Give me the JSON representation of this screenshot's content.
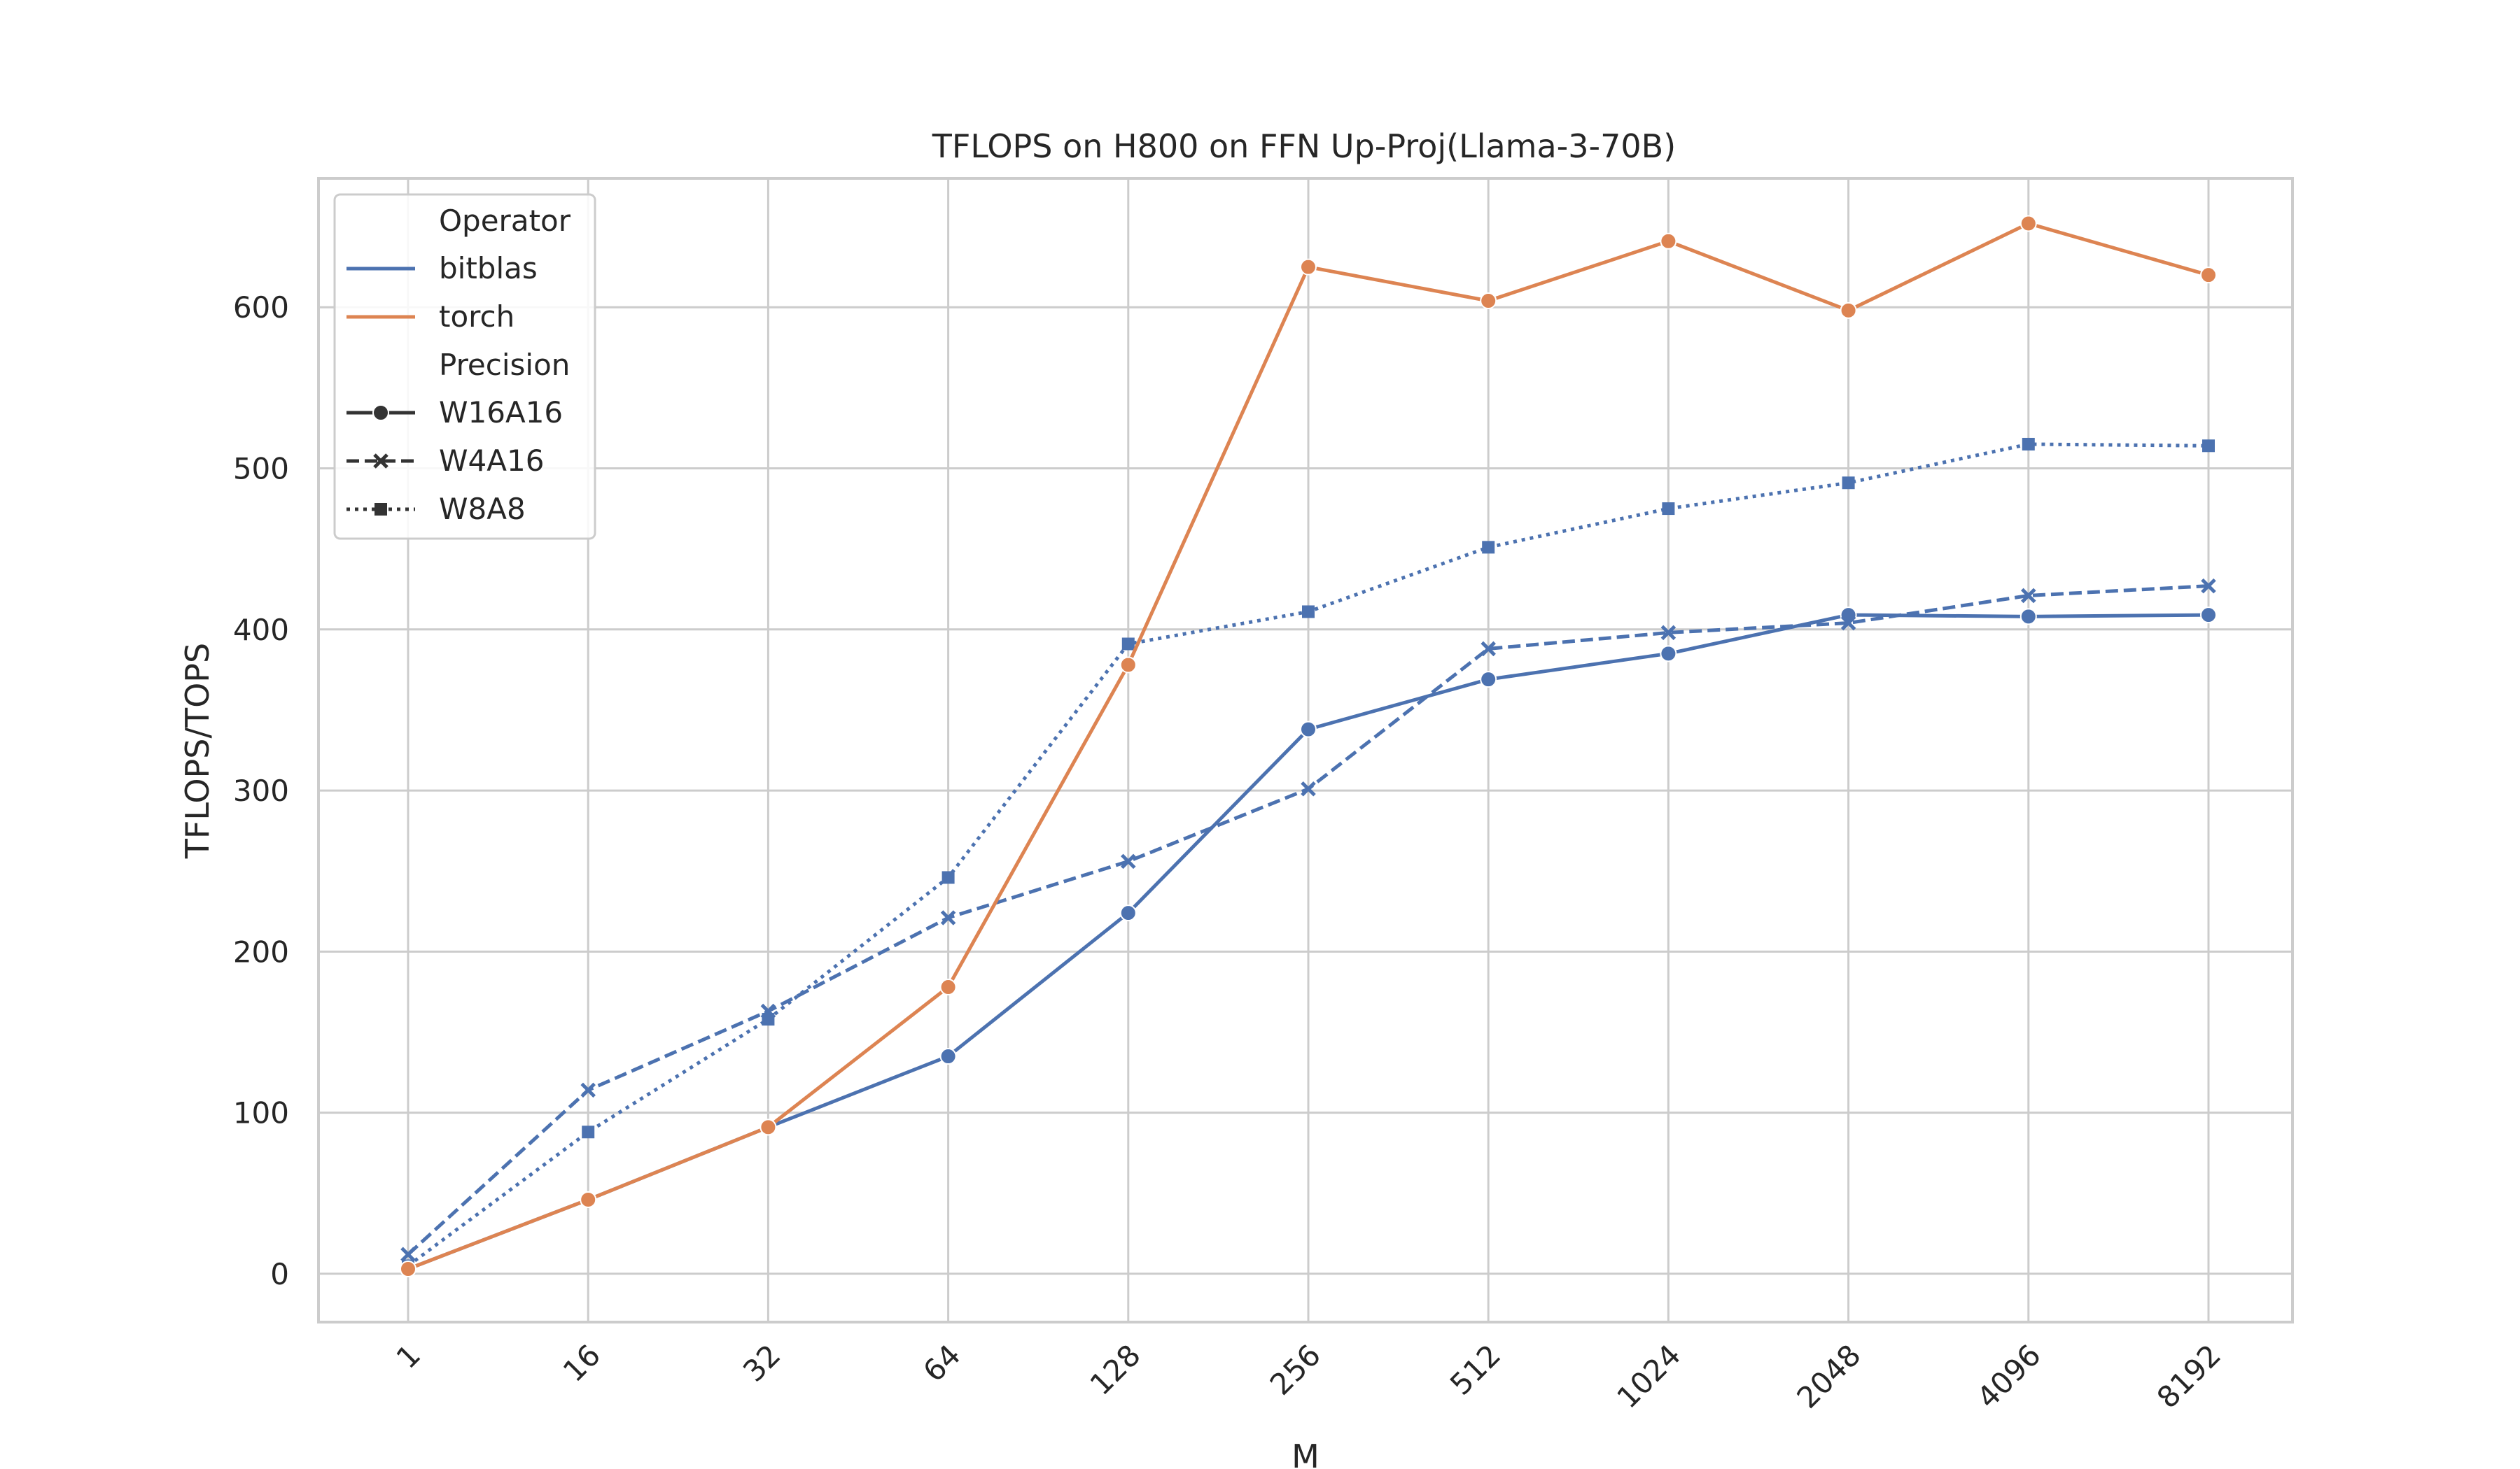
{
  "chart_data": {
    "type": "line",
    "title": "TFLOPS on H800 on FFN Up-Proj(Llama-3-70B)",
    "xlabel": "M",
    "ylabel": "TFLOPS/TOPS",
    "categories": [
      "1",
      "16",
      "32",
      "64",
      "128",
      "256",
      "512",
      "1024",
      "2048",
      "4096",
      "8192"
    ],
    "ylim": [
      -30,
      680
    ],
    "yticks": [
      0,
      100,
      200,
      300,
      400,
      500,
      600
    ],
    "grid": true,
    "legend_position": "upper-left",
    "legend": {
      "operator_title": "Operator",
      "operators": [
        {
          "name": "bitblas",
          "color": "#4c72b0"
        },
        {
          "name": "torch",
          "color": "#dd8452"
        }
      ],
      "precision_title": "Precision",
      "precisions": [
        {
          "name": "W16A16",
          "style": "solid",
          "marker": "circle"
        },
        {
          "name": "W4A16",
          "style": "dashed",
          "marker": "x"
        },
        {
          "name": "W8A8",
          "style": "dotted",
          "marker": "square"
        }
      ]
    },
    "series": [
      {
        "operator": "bitblas",
        "precision": "W16A16",
        "color": "#4c72b0",
        "values": [
          3,
          46,
          91,
          135,
          224,
          338,
          369,
          385,
          409,
          408,
          409
        ]
      },
      {
        "operator": "bitblas",
        "precision": "W4A16",
        "color": "#4c72b0",
        "values": [
          12,
          114,
          163,
          221,
          256,
          301,
          388,
          398,
          404,
          421,
          427
        ]
      },
      {
        "operator": "bitblas",
        "precision": "W8A8",
        "color": "#4c72b0",
        "values": [
          5,
          88,
          158,
          246,
          391,
          411,
          451,
          475,
          491,
          515,
          514
        ]
      },
      {
        "operator": "torch",
        "precision": "W16A16",
        "color": "#dd8452",
        "values": [
          3,
          46,
          91,
          178,
          378,
          625,
          604,
          641,
          598,
          652,
          620
        ]
      }
    ]
  }
}
